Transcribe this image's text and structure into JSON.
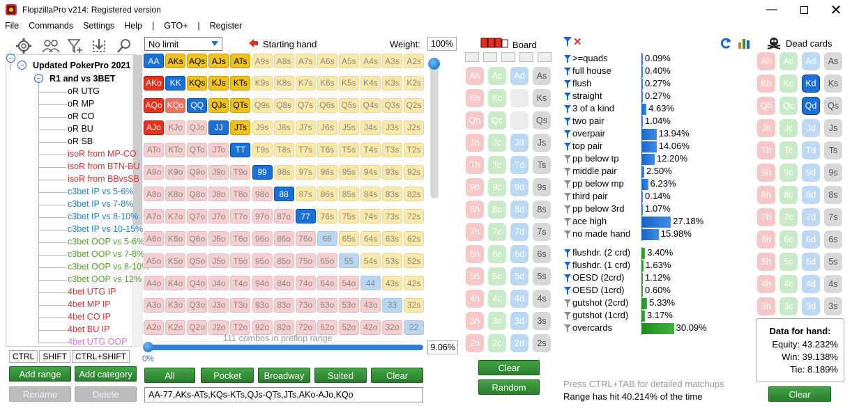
{
  "app": {
    "title": "FlopzillaPro v214: Registered version"
  },
  "menu": [
    "File",
    "Commands",
    "Settings",
    "Help",
    "|",
    "GTO+",
    "|",
    "Register"
  ],
  "tree": {
    "root": "Updated PokerPro 2021",
    "group": "R1 and vs 3BET",
    "items": [
      {
        "label": "oR UTG",
        "color": "#000000"
      },
      {
        "label": "oR MP",
        "color": "#000000"
      },
      {
        "label": "oR CO",
        "color": "#000000"
      },
      {
        "label": "oR BU",
        "color": "#000000"
      },
      {
        "label": "oR SB",
        "color": "#000000"
      },
      {
        "label": "isoR from MP-CO",
        "color": "#e03030"
      },
      {
        "label": "isoR from BTN-BU",
        "color": "#e03030"
      },
      {
        "label": "isoR from BBvsSB",
        "color": "#e03030"
      },
      {
        "label": "c3bet IP vs 5-6%",
        "color": "#1a86c8"
      },
      {
        "label": "c3bet IP vs 7-8%",
        "color": "#1a86c8"
      },
      {
        "label": "c3bet IP vs 8-10%",
        "color": "#1a86c8"
      },
      {
        "label": "c3bet IP vs 10-15%",
        "color": "#1a86c8"
      },
      {
        "label": "c3bet OOP vs 5-6%",
        "color": "#5aa02c"
      },
      {
        "label": "c3bet OOP vs 7-8%",
        "color": "#5aa02c"
      },
      {
        "label": "c3bet OOP vs 8-10%",
        "color": "#5aa02c"
      },
      {
        "label": "c3bet OOP vs 12%",
        "color": "#5aa02c"
      },
      {
        "label": "4bet UTG IP",
        "color": "#e03030"
      },
      {
        "label": "4bet MP IP",
        "color": "#e03030"
      },
      {
        "label": "4bet CO IP",
        "color": "#e03030"
      },
      {
        "label": "4bet BU IP",
        "color": "#e03030"
      },
      {
        "label": "4bet UTG OOP",
        "color": "#e070d8"
      }
    ]
  },
  "tabs": [
    "CTRL",
    "SHIFT",
    "CTRL+SHIFT"
  ],
  "left_buttons": {
    "add_range": "Add range",
    "add_category": "Add category",
    "rename": "Rename",
    "delete": "Delete"
  },
  "range": {
    "limit": "No limit",
    "starting_hand_label": "Starting hand",
    "weight_label": "Weight:",
    "weight_value": "100%",
    "combos_text": "111 combos in preflop range",
    "slider_min": "0%",
    "slider_pct": "9.06%",
    "range_text": "AA-77,AKs-ATs,KQs-KTs,QJs-QTs,JTs,AKo-AJo,KQo",
    "buttons": [
      "All",
      "Pocket",
      "Broadway",
      "Suited",
      "Clear"
    ]
  },
  "matrix": [
    [
      "AA",
      "AKs",
      "AQs",
      "AJs",
      "ATs",
      "A9s",
      "A8s",
      "A7s",
      "A6s",
      "A5s",
      "A4s",
      "A3s",
      "A2s"
    ],
    [
      "AKo",
      "KK",
      "KQs",
      "KJs",
      "KTs",
      "K9s",
      "K8s",
      "K7s",
      "K6s",
      "K5s",
      "K4s",
      "K3s",
      "K2s"
    ],
    [
      "AQo",
      "KQo",
      "QQ",
      "QJs",
      "QTs",
      "Q9s",
      "Q8s",
      "Q7s",
      "Q6s",
      "Q5s",
      "Q4s",
      "Q3s",
      "Q2s"
    ],
    [
      "AJo",
      "KJo",
      "QJo",
      "JJ",
      "JTs",
      "J9s",
      "J8s",
      "J7s",
      "J6s",
      "J5s",
      "J4s",
      "J3s",
      "J2s"
    ],
    [
      "ATo",
      "KTo",
      "QTo",
      "JTo",
      "TT",
      "T9s",
      "T8s",
      "T7s",
      "T6s",
      "T5s",
      "T4s",
      "T3s",
      "T2s"
    ],
    [
      "A9o",
      "K9o",
      "Q9o",
      "J9o",
      "T9o",
      "99",
      "98s",
      "97s",
      "96s",
      "95s",
      "94s",
      "93s",
      "92s"
    ],
    [
      "A8o",
      "K8o",
      "Q8o",
      "J8o",
      "T8o",
      "98o",
      "88",
      "87s",
      "86s",
      "85s",
      "84s",
      "83s",
      "82s"
    ],
    [
      "A7o",
      "K7o",
      "Q7o",
      "J7o",
      "T7o",
      "97o",
      "87o",
      "77",
      "76s",
      "75s",
      "74s",
      "73s",
      "72s"
    ],
    [
      "A6o",
      "K6o",
      "Q6o",
      "J6o",
      "T6o",
      "96o",
      "86o",
      "76o",
      "66",
      "65s",
      "64s",
      "63s",
      "62s"
    ],
    [
      "A5o",
      "K5o",
      "Q5o",
      "J5o",
      "T5o",
      "95o",
      "85o",
      "75o",
      "65o",
      "55",
      "54s",
      "53s",
      "52s"
    ],
    [
      "A4o",
      "K4o",
      "Q4o",
      "J4o",
      "T4o",
      "94o",
      "84o",
      "74o",
      "64o",
      "54o",
      "44",
      "43s",
      "42s"
    ],
    [
      "A3o",
      "K3o",
      "Q3o",
      "J3o",
      "T3o",
      "93o",
      "83o",
      "73o",
      "63o",
      "53o",
      "43o",
      "33",
      "32s"
    ],
    [
      "A2o",
      "K2o",
      "Q2o",
      "J2o",
      "T2o",
      "92o",
      "82o",
      "72o",
      "62o",
      "52o",
      "42o",
      "32o",
      "22"
    ]
  ],
  "selected_hands": [
    "AA",
    "KK",
    "QQ",
    "JJ",
    "TT",
    "99",
    "88",
    "77",
    "AKs",
    "AQs",
    "AJs",
    "ATs",
    "KQs",
    "KJs",
    "KTs",
    "QJs",
    "QTs",
    "JTs",
    "AKo",
    "AQo",
    "AJo",
    "KQo"
  ],
  "board": {
    "label": "Board",
    "ranks": [
      "A",
      "K",
      "Q",
      "J",
      "T",
      "9",
      "8",
      "7",
      "6",
      "5",
      "4",
      "3",
      "2"
    ],
    "suits": [
      "h",
      "c",
      "d",
      "s"
    ],
    "gone": [
      "Kd",
      "Qd"
    ],
    "clear": "Clear",
    "random": "Random"
  },
  "stats": {
    "rows": [
      {
        "label": ">=quads",
        "value": "0.09%",
        "pct": 0.09,
        "blue": true
      },
      {
        "label": "full house",
        "value": "0.40%",
        "pct": 0.4,
        "blue": true
      },
      {
        "label": "flush",
        "value": "0.27%",
        "pct": 0.27,
        "blue": true
      },
      {
        "label": "straight",
        "value": "0.27%",
        "pct": 0.27,
        "blue": true
      },
      {
        "label": "3 of a kind",
        "value": "4.63%",
        "pct": 4.63,
        "blue": true
      },
      {
        "label": "two pair",
        "value": "1.04%",
        "pct": 1.04,
        "blue": true
      },
      {
        "label": "overpair",
        "value": "13.94%",
        "pct": 13.94,
        "blue": true
      },
      {
        "label": "top pair",
        "value": "14.06%",
        "pct": 14.06,
        "blue": true
      },
      {
        "label": "pp below tp",
        "value": "12.20%",
        "pct": 12.2,
        "blue": false
      },
      {
        "label": "middle pair",
        "value": "2.50%",
        "pct": 2.5,
        "blue": false
      },
      {
        "label": "pp below mp",
        "value": "6.23%",
        "pct": 6.23,
        "blue": false
      },
      {
        "label": "third pair",
        "value": "0.14%",
        "pct": 0.14,
        "blue": false
      },
      {
        "label": "pp below 3rd",
        "value": "1.07%",
        "pct": 1.07,
        "blue": false
      },
      {
        "label": "ace high",
        "value": "27.18%",
        "pct": 27.18,
        "blue": false
      },
      {
        "label": "no made hand",
        "value": "15.98%",
        "pct": 15.98,
        "blue": false
      }
    ],
    "draws": [
      {
        "label": "flushdr. (2 crd)",
        "value": "3.40%",
        "pct": 3.4,
        "blue": true
      },
      {
        "label": "flushdr. (1 crd)",
        "value": "1.63%",
        "pct": 1.63,
        "blue": true
      },
      {
        "label": "OESD (2crd)",
        "value": "1.12%",
        "pct": 1.12,
        "blue": true
      },
      {
        "label": "OESD (1crd)",
        "value": "0.60%",
        "pct": 0.6,
        "blue": true
      },
      {
        "label": "gutshot (2crd)",
        "value": "5.33%",
        "pct": 5.33,
        "blue": false
      },
      {
        "label": "gutshot (1crd)",
        "value": "3.17%",
        "pct": 3.17,
        "blue": false
      },
      {
        "label": "overcards",
        "value": "30.09%",
        "pct": 30.09,
        "blue": false
      }
    ],
    "hint": "Press CTRL+TAB for detailed matchups",
    "hit_text": "Range has hit 40.214% of the time"
  },
  "dead": {
    "label": "Dead cards",
    "selected": [
      "Kd",
      "Qd"
    ],
    "clear": "Clear"
  },
  "hand_data": {
    "title": "Data for hand:",
    "equity": "Equity: 43.232%",
    "win": "Win: 39.138%",
    "tie": "Tie: 8.189%"
  }
}
